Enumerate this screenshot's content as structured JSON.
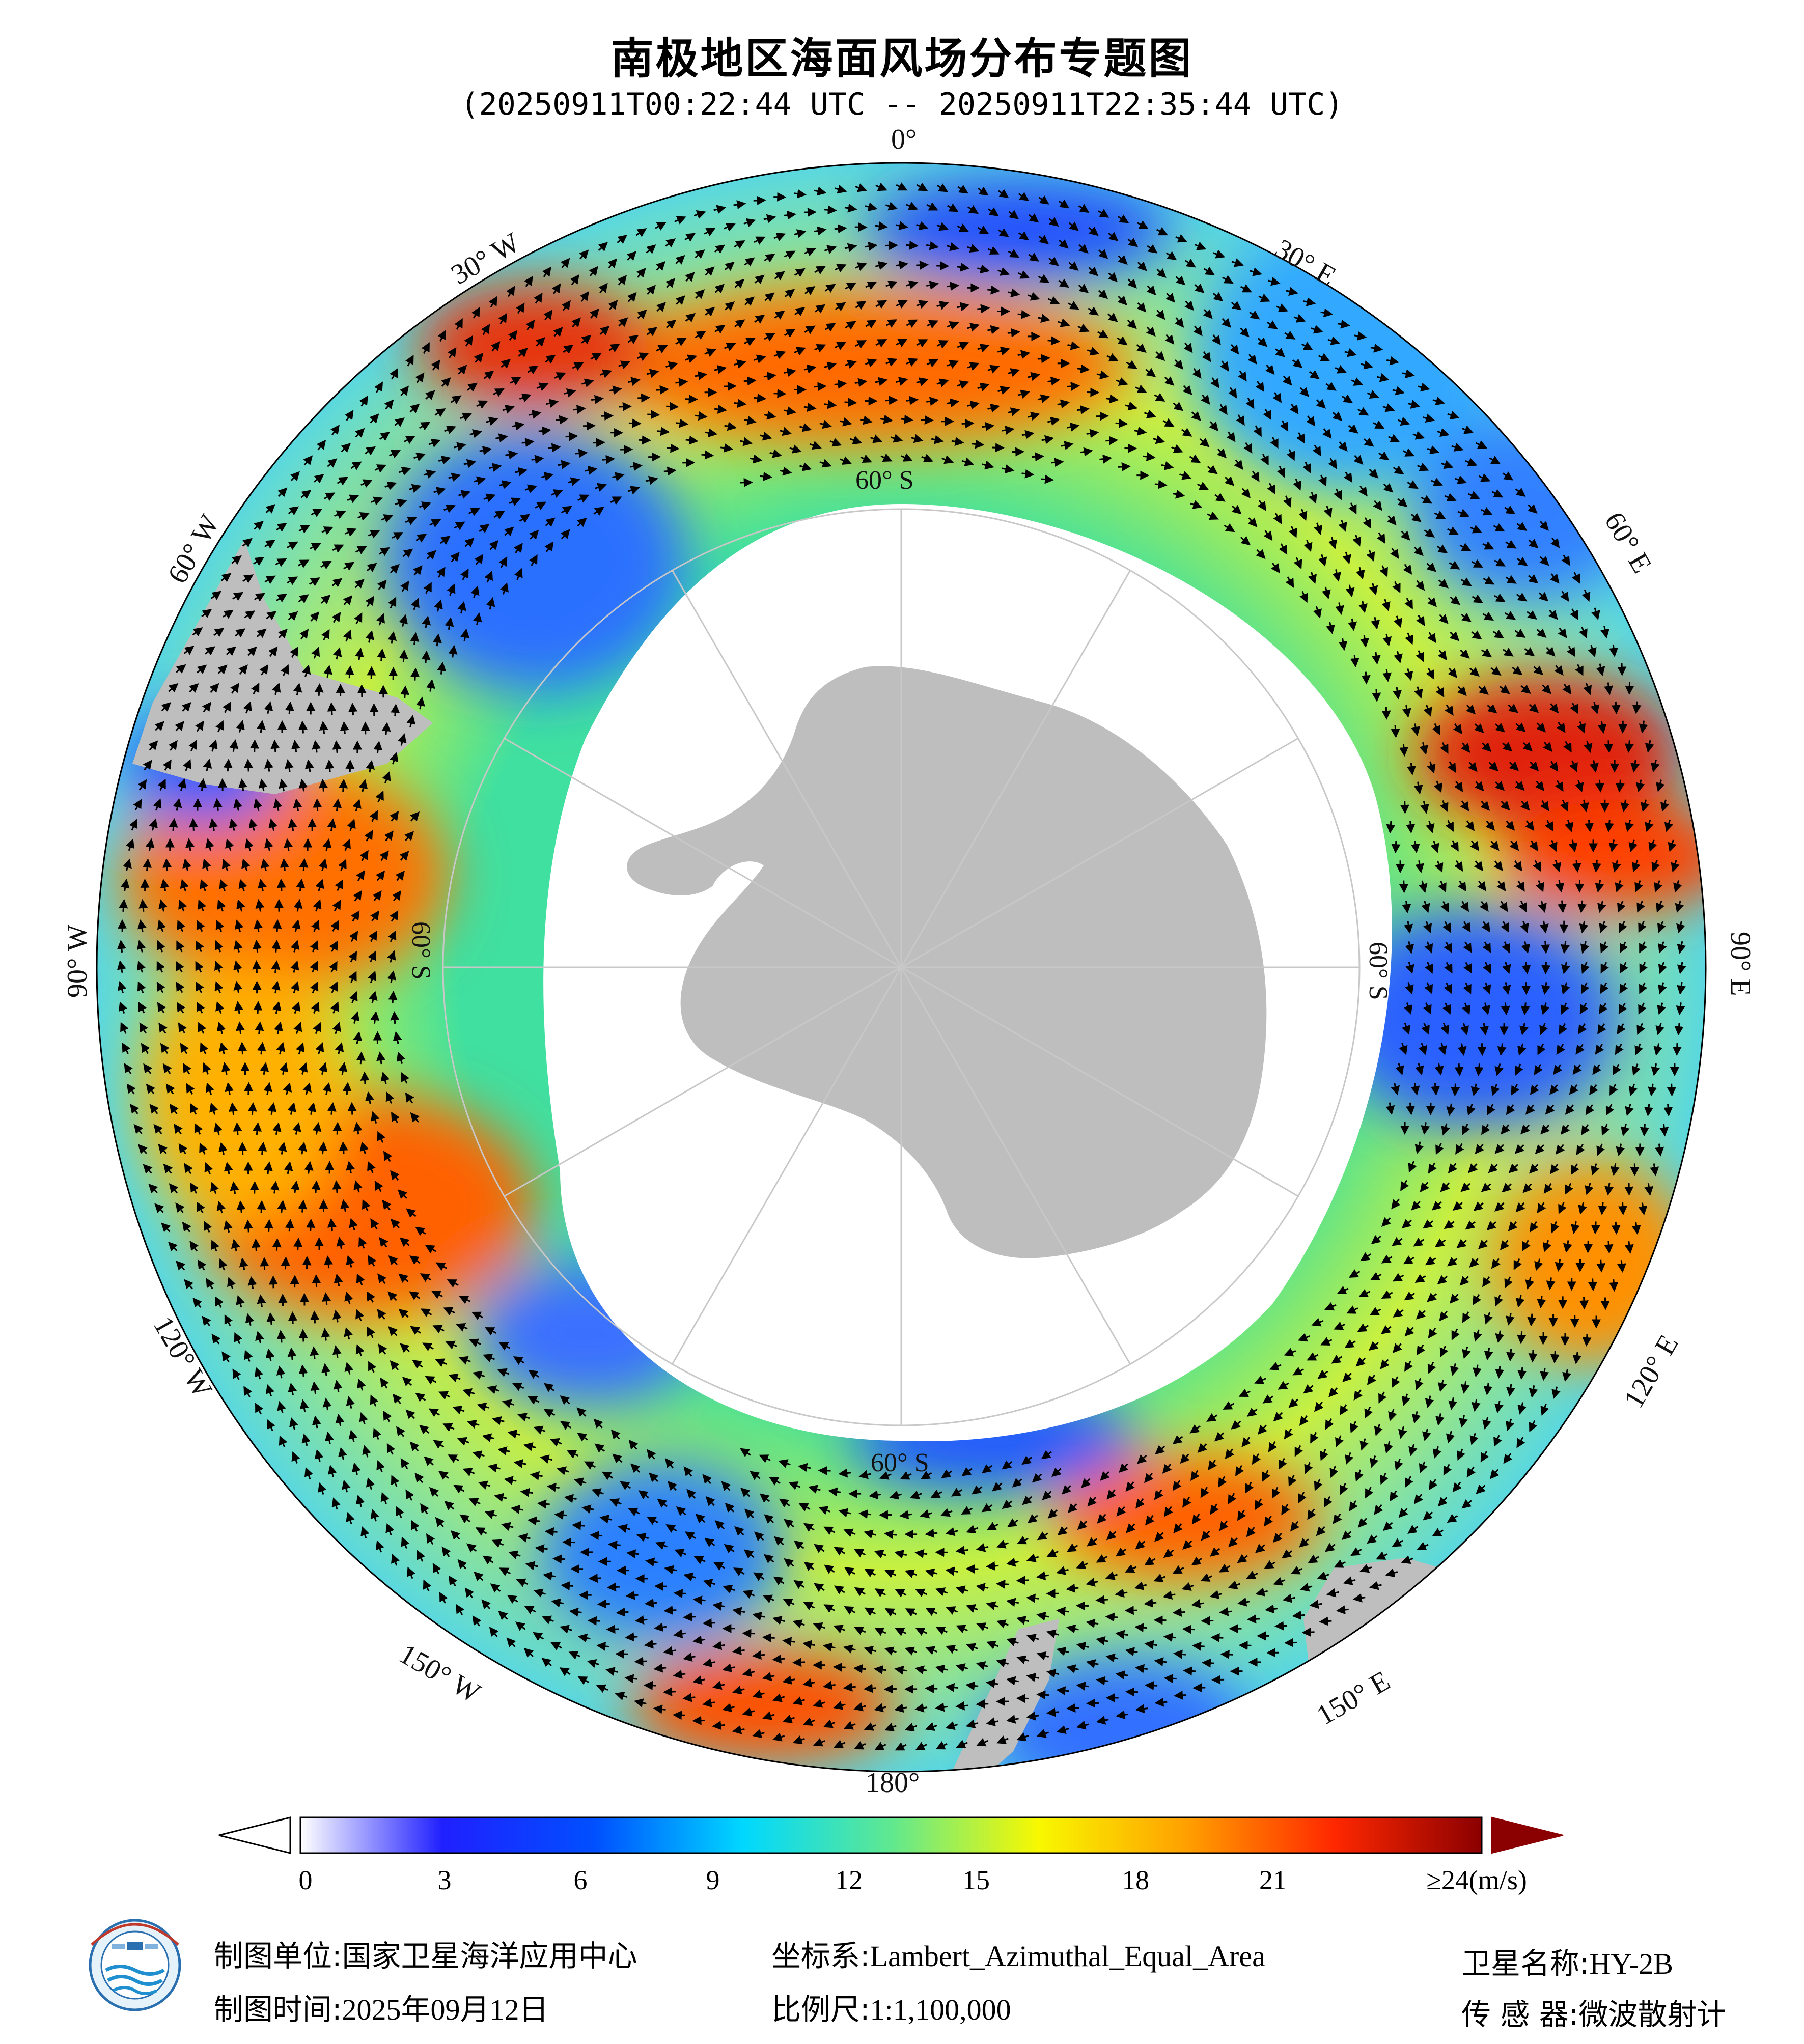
{
  "title": "南极地区海面风场分布专题图",
  "subtitle": "(20250911T00:22:44 UTC -- 20250911T22:35:44 UTC)",
  "lon_labels": [
    "0°",
    "30° E",
    "60° E",
    "90° E",
    "120° E",
    "150° E",
    "180°",
    "150° W",
    "120° W",
    "90° W",
    "60° W",
    "30° W"
  ],
  "lat_labels": [
    "60° S",
    "60° S",
    "60° S",
    "60° S"
  ],
  "colorbar": {
    "ticks": [
      "0",
      "3",
      "6",
      "9",
      "12",
      "15",
      "18",
      "21",
      "≥24(m/s)"
    ],
    "colors": [
      "#ffffff",
      "#2020ff",
      "#0040ff",
      "#00c8ff",
      "#40e0a0",
      "#ffff00",
      "#ffa500",
      "#ff3000",
      "#8b0000"
    ],
    "extend_over_color": "#8b0000"
  },
  "footer": {
    "org_label": "制图单位:",
    "org_value": "国家卫星海洋应用中心",
    "date_label": "制图时间:",
    "date_value": "2025年09月12日",
    "crs_label": "坐标系:",
    "crs_value": "Lambert_Azimuthal_Equal_Area",
    "scale_label": "比例尺:",
    "scale_value": "1:1,100,000",
    "sat_label": "卫星名称:",
    "sat_value": "HY-2B",
    "sensor_label": "传 感 器:",
    "sensor_value": "微波散射计"
  },
  "logo_icon": "noc-satellite-ocean-logo",
  "land_color": "#bebebe"
}
